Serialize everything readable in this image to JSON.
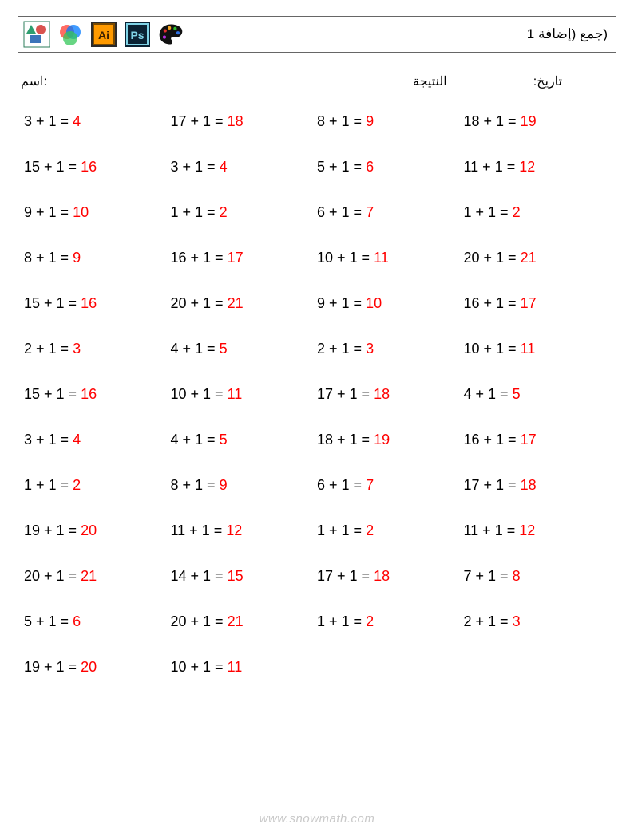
{
  "header": {
    "title": "(جمع (إضافة 1"
  },
  "meta": {
    "name_label": "اسم:",
    "score_label": "النتيجة",
    "date_label": ":تاريخ"
  },
  "style": {
    "answer_color": "#ff0000",
    "text_color": "#000000",
    "border_color": "#666666",
    "background": "#ffffff",
    "footer_color": "#c9c9c9",
    "font_size_problem": 18,
    "columns": 4,
    "row_gap": 36
  },
  "problems": [
    {
      "a": 3,
      "b": 1,
      "ans": 4
    },
    {
      "a": 17,
      "b": 1,
      "ans": 18
    },
    {
      "a": 8,
      "b": 1,
      "ans": 9
    },
    {
      "a": 18,
      "b": 1,
      "ans": 19
    },
    {
      "a": 15,
      "b": 1,
      "ans": 16
    },
    {
      "a": 3,
      "b": 1,
      "ans": 4
    },
    {
      "a": 5,
      "b": 1,
      "ans": 6
    },
    {
      "a": 11,
      "b": 1,
      "ans": 12
    },
    {
      "a": 9,
      "b": 1,
      "ans": 10
    },
    {
      "a": 1,
      "b": 1,
      "ans": 2
    },
    {
      "a": 6,
      "b": 1,
      "ans": 7
    },
    {
      "a": 1,
      "b": 1,
      "ans": 2
    },
    {
      "a": 8,
      "b": 1,
      "ans": 9
    },
    {
      "a": 16,
      "b": 1,
      "ans": 17
    },
    {
      "a": 10,
      "b": 1,
      "ans": 11
    },
    {
      "a": 20,
      "b": 1,
      "ans": 21
    },
    {
      "a": 15,
      "b": 1,
      "ans": 16
    },
    {
      "a": 20,
      "b": 1,
      "ans": 21
    },
    {
      "a": 9,
      "b": 1,
      "ans": 10
    },
    {
      "a": 16,
      "b": 1,
      "ans": 17
    },
    {
      "a": 2,
      "b": 1,
      "ans": 3
    },
    {
      "a": 4,
      "b": 1,
      "ans": 5
    },
    {
      "a": 2,
      "b": 1,
      "ans": 3
    },
    {
      "a": 10,
      "b": 1,
      "ans": 11
    },
    {
      "a": 15,
      "b": 1,
      "ans": 16
    },
    {
      "a": 10,
      "b": 1,
      "ans": 11
    },
    {
      "a": 17,
      "b": 1,
      "ans": 18
    },
    {
      "a": 4,
      "b": 1,
      "ans": 5
    },
    {
      "a": 3,
      "b": 1,
      "ans": 4
    },
    {
      "a": 4,
      "b": 1,
      "ans": 5
    },
    {
      "a": 18,
      "b": 1,
      "ans": 19
    },
    {
      "a": 16,
      "b": 1,
      "ans": 17
    },
    {
      "a": 1,
      "b": 1,
      "ans": 2
    },
    {
      "a": 8,
      "b": 1,
      "ans": 9
    },
    {
      "a": 6,
      "b": 1,
      "ans": 7
    },
    {
      "a": 17,
      "b": 1,
      "ans": 18
    },
    {
      "a": 19,
      "b": 1,
      "ans": 20
    },
    {
      "a": 11,
      "b": 1,
      "ans": 12
    },
    {
      "a": 1,
      "b": 1,
      "ans": 2
    },
    {
      "a": 11,
      "b": 1,
      "ans": 12
    },
    {
      "a": 20,
      "b": 1,
      "ans": 21
    },
    {
      "a": 14,
      "b": 1,
      "ans": 15
    },
    {
      "a": 17,
      "b": 1,
      "ans": 18
    },
    {
      "a": 7,
      "b": 1,
      "ans": 8
    },
    {
      "a": 5,
      "b": 1,
      "ans": 6
    },
    {
      "a": 20,
      "b": 1,
      "ans": 21
    },
    {
      "a": 1,
      "b": 1,
      "ans": 2
    },
    {
      "a": 2,
      "b": 1,
      "ans": 3
    },
    {
      "a": 19,
      "b": 1,
      "ans": 20
    },
    {
      "a": 10,
      "b": 1,
      "ans": 11
    }
  ],
  "footer": {
    "text": "www.snowmath.com"
  },
  "icons": {
    "shapes": {
      "bg": "#ffffff",
      "border": "#2e7d5b",
      "triangle": "#2e9e6f",
      "circle": "#d9534f",
      "square": "#3b74b9"
    },
    "venn": {
      "bg": "#ffffff",
      "c1": "#ff3b30",
      "c2": "#34c759",
      "c3": "#007aff"
    },
    "ai": {
      "bg": "#2a2a2a",
      "inner": "#ff9a00",
      "border": "#7a4a00",
      "text": "Ai"
    },
    "ps": {
      "bg": "#0a2233",
      "inner": "#7fd3e6",
      "text": "Ps"
    },
    "palette": {
      "body": "#111111",
      "dots": [
        "#e12d2d",
        "#f5a623",
        "#2dbd2d",
        "#2d6fe1",
        "#b52de1"
      ]
    }
  }
}
